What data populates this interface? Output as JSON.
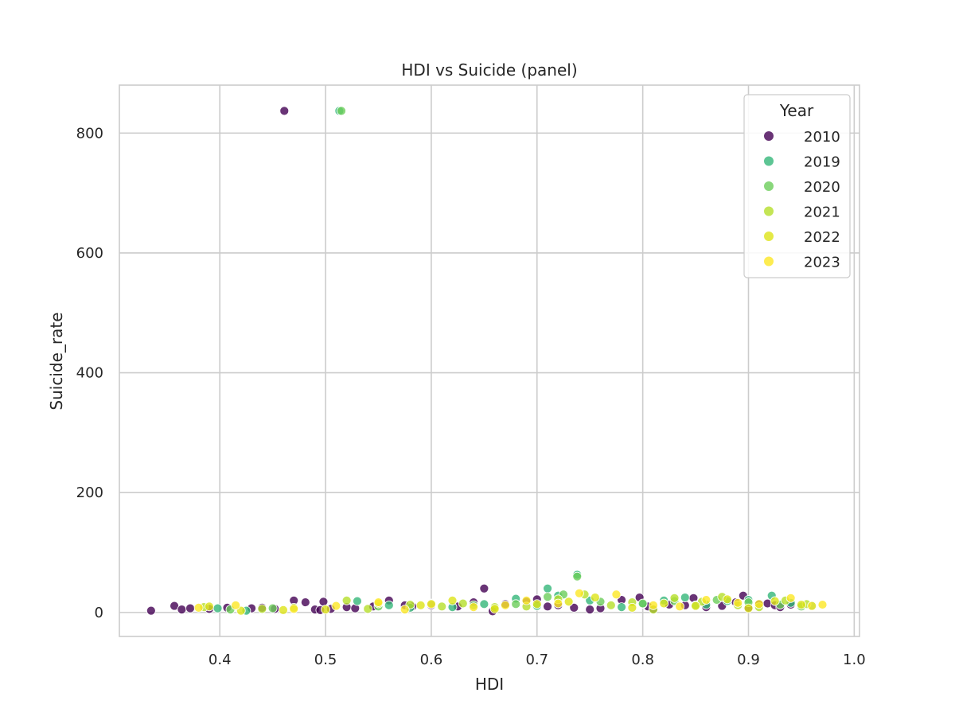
{
  "chart_data": {
    "type": "scatter",
    "title": "HDI vs Suicide (panel)",
    "xlabel": "HDI",
    "ylabel": "Suicide_rate",
    "xlim": [
      0.305,
      1.005
    ],
    "ylim": [
      -40,
      880
    ],
    "xticks": [
      "0.4",
      "0.5",
      "0.6",
      "0.7",
      "0.8",
      "0.9",
      "1.0"
    ],
    "yticks": [
      "0",
      "200",
      "400",
      "600",
      "800"
    ],
    "grid": true,
    "legend": {
      "title": "Year",
      "placement": "top-right"
    },
    "series": [
      {
        "name": "2010",
        "color": "#440154",
        "points": [
          [
            0.335,
            3
          ],
          [
            0.357,
            11
          ],
          [
            0.364,
            5
          ],
          [
            0.372,
            7
          ],
          [
            0.39,
            6
          ],
          [
            0.407,
            8
          ],
          [
            0.43,
            7
          ],
          [
            0.44,
            8
          ],
          [
            0.452,
            6
          ],
          [
            0.461,
            837
          ],
          [
            0.47,
            20
          ],
          [
            0.481,
            17
          ],
          [
            0.49,
            5
          ],
          [
            0.495,
            4
          ],
          [
            0.498,
            18
          ],
          [
            0.505,
            6
          ],
          [
            0.52,
            9
          ],
          [
            0.528,
            7
          ],
          [
            0.545,
            10
          ],
          [
            0.56,
            20
          ],
          [
            0.575,
            12
          ],
          [
            0.582,
            10
          ],
          [
            0.6,
            12
          ],
          [
            0.625,
            10
          ],
          [
            0.64,
            17
          ],
          [
            0.65,
            40
          ],
          [
            0.658,
            2
          ],
          [
            0.67,
            14
          ],
          [
            0.69,
            18
          ],
          [
            0.7,
            22
          ],
          [
            0.71,
            10
          ],
          [
            0.72,
            12
          ],
          [
            0.735,
            8
          ],
          [
            0.75,
            5
          ],
          [
            0.76,
            7
          ],
          [
            0.78,
            21
          ],
          [
            0.797,
            25
          ],
          [
            0.805,
            10
          ],
          [
            0.81,
            6
          ],
          [
            0.825,
            13
          ],
          [
            0.84,
            12
          ],
          [
            0.848,
            24
          ],
          [
            0.86,
            9
          ],
          [
            0.875,
            11
          ],
          [
            0.888,
            17
          ],
          [
            0.895,
            28
          ],
          [
            0.9,
            8
          ],
          [
            0.91,
            14
          ],
          [
            0.918,
            15
          ],
          [
            0.925,
            12
          ],
          [
            0.93,
            9
          ],
          [
            0.94,
            13
          ]
        ]
      },
      {
        "name": "2019",
        "color": "#35b779",
        "points": [
          [
            0.398,
            7
          ],
          [
            0.425,
            3
          ],
          [
            0.513,
            837
          ],
          [
            0.53,
            19
          ],
          [
            0.56,
            12
          ],
          [
            0.58,
            8
          ],
          [
            0.62,
            9
          ],
          [
            0.65,
            14
          ],
          [
            0.68,
            23
          ],
          [
            0.7,
            11
          ],
          [
            0.71,
            40
          ],
          [
            0.72,
            28
          ],
          [
            0.738,
            63
          ],
          [
            0.75,
            20
          ],
          [
            0.78,
            9
          ],
          [
            0.8,
            14
          ],
          [
            0.82,
            20
          ],
          [
            0.84,
            25
          ],
          [
            0.86,
            13
          ],
          [
            0.88,
            19
          ],
          [
            0.9,
            21
          ],
          [
            0.922,
            28
          ],
          [
            0.94,
            16
          ],
          [
            0.96,
            11
          ]
        ]
      },
      {
        "name": "2020",
        "color": "#6ccd5a",
        "points": [
          [
            0.41,
            5
          ],
          [
            0.45,
            7
          ],
          [
            0.515,
            837
          ],
          [
            0.55,
            10
          ],
          [
            0.6,
            15
          ],
          [
            0.64,
            12
          ],
          [
            0.68,
            14
          ],
          [
            0.71,
            26
          ],
          [
            0.725,
            30
          ],
          [
            0.738,
            60
          ],
          [
            0.76,
            18
          ],
          [
            0.8,
            15
          ],
          [
            0.83,
            19
          ],
          [
            0.85,
            12
          ],
          [
            0.87,
            21
          ],
          [
            0.9,
            17
          ],
          [
            0.93,
            13
          ],
          [
            0.95,
            10
          ]
        ]
      },
      {
        "name": "2021",
        "color": "#b5de2b",
        "points": [
          [
            0.385,
            9
          ],
          [
            0.44,
            6
          ],
          [
            0.47,
            8
          ],
          [
            0.52,
            20
          ],
          [
            0.54,
            6
          ],
          [
            0.58,
            13
          ],
          [
            0.61,
            10
          ],
          [
            0.63,
            15
          ],
          [
            0.66,
            9
          ],
          [
            0.69,
            10
          ],
          [
            0.72,
            22
          ],
          [
            0.745,
            30
          ],
          [
            0.77,
            12
          ],
          [
            0.79,
            17
          ],
          [
            0.81,
            5
          ],
          [
            0.83,
            24
          ],
          [
            0.856,
            18
          ],
          [
            0.875,
            26
          ],
          [
            0.89,
            12
          ],
          [
            0.91,
            9
          ],
          [
            0.935,
            20
          ],
          [
            0.955,
            14
          ]
        ]
      },
      {
        "name": "2022",
        "color": "#dde318",
        "points": [
          [
            0.39,
            10
          ],
          [
            0.42,
            3
          ],
          [
            0.46,
            4
          ],
          [
            0.5,
            5
          ],
          [
            0.55,
            15
          ],
          [
            0.59,
            12
          ],
          [
            0.62,
            20
          ],
          [
            0.66,
            6
          ],
          [
            0.7,
            14
          ],
          [
            0.73,
            18
          ],
          [
            0.755,
            25
          ],
          [
            0.79,
            8
          ],
          [
            0.82,
            15
          ],
          [
            0.85,
            11
          ],
          [
            0.88,
            22
          ],
          [
            0.9,
            7
          ],
          [
            0.925,
            19
          ],
          [
            0.95,
            13
          ]
        ]
      },
      {
        "name": "2023",
        "color": "#fde725",
        "points": [
          [
            0.38,
            8
          ],
          [
            0.415,
            12
          ],
          [
            0.47,
            6
          ],
          [
            0.51,
            11
          ],
          [
            0.55,
            17
          ],
          [
            0.575,
            5
          ],
          [
            0.6,
            14
          ],
          [
            0.64,
            9
          ],
          [
            0.67,
            12
          ],
          [
            0.69,
            20
          ],
          [
            0.72,
            15
          ],
          [
            0.74,
            32
          ],
          [
            0.775,
            30
          ],
          [
            0.81,
            12
          ],
          [
            0.835,
            10
          ],
          [
            0.86,
            21
          ],
          [
            0.89,
            16
          ],
          [
            0.91,
            14
          ],
          [
            0.94,
            24
          ],
          [
            0.96,
            11
          ],
          [
            0.97,
            13
          ]
        ]
      }
    ]
  }
}
